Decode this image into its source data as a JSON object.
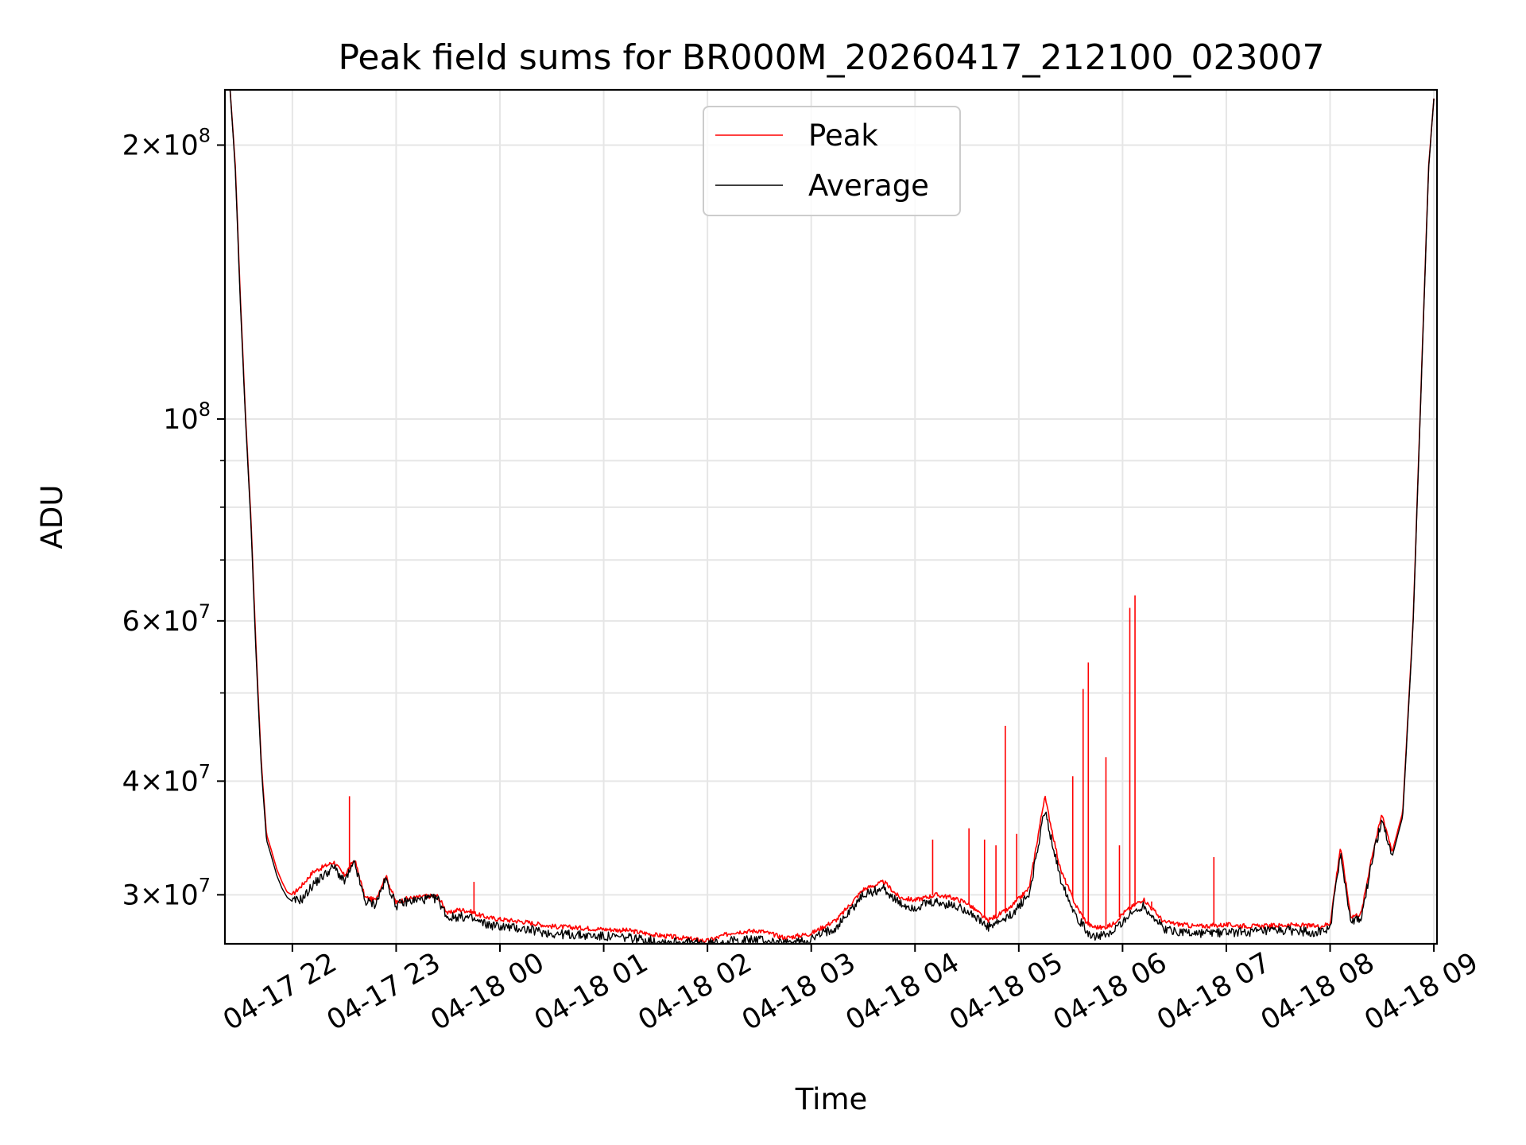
{
  "chart_data": {
    "type": "line",
    "title": "Peak field sums for BR000M_20260417_212100_023007",
    "xlabel": "Time",
    "ylabel": "ADU",
    "yscale": "log",
    "ylim": [
      26500000,
      230000000
    ],
    "xlim_hours": [
      -0.65,
      11.03
    ],
    "grid": true,
    "legend_position": "top-center",
    "x_ticks": [
      {
        "label": "04-17 22",
        "hour": 0
      },
      {
        "label": "04-17 23",
        "hour": 1
      },
      {
        "label": "04-18 00",
        "hour": 2
      },
      {
        "label": "04-18 01",
        "hour": 3
      },
      {
        "label": "04-18 02",
        "hour": 4
      },
      {
        "label": "04-18 03",
        "hour": 5
      },
      {
        "label": "04-18 04",
        "hour": 6
      },
      {
        "label": "04-18 05",
        "hour": 7
      },
      {
        "label": "04-18 06",
        "hour": 8
      },
      {
        "label": "04-18 07",
        "hour": 9
      },
      {
        "label": "04-18 08",
        "hour": 10
      },
      {
        "label": "04-18 09",
        "hour": 11
      }
    ],
    "y_ticks": [
      {
        "value": 30000000,
        "mantissa": "3",
        "exponent": "7"
      },
      {
        "value": 40000000,
        "mantissa": "4",
        "exponent": "7"
      },
      {
        "value": 60000000,
        "mantissa": "6",
        "exponent": "7"
      },
      {
        "value": 100000000,
        "mantissa": "",
        "exponent": "8"
      },
      {
        "value": 200000000,
        "mantissa": "2",
        "exponent": "8"
      }
    ],
    "series": [
      {
        "name": "Peak",
        "color": "#ff0000",
        "x_hours": [
          -0.6,
          -0.55,
          -0.5,
          -0.45,
          -0.4,
          -0.35,
          -0.3,
          -0.25,
          -0.2,
          -0.15,
          -0.1,
          -0.05,
          0.0,
          0.1,
          0.2,
          0.3,
          0.4,
          0.5,
          0.6,
          0.7,
          0.8,
          0.9,
          1.0,
          1.1,
          1.2,
          1.3,
          1.4,
          1.5,
          1.6,
          1.7,
          1.8,
          1.9,
          2.0,
          2.25,
          2.5,
          2.75,
          3.0,
          3.25,
          3.5,
          3.75,
          4.0,
          4.25,
          4.5,
          4.75,
          5.0,
          5.25,
          5.5,
          5.7,
          5.85,
          6.0,
          6.1,
          6.2,
          6.35,
          6.5,
          6.7,
          6.9,
          7.1,
          7.25,
          7.4,
          7.55,
          7.65,
          7.7,
          7.8,
          7.9,
          8.0,
          8.2,
          8.4,
          8.5,
          8.6,
          8.7,
          9.0,
          9.3,
          9.6,
          9.9,
          10.0,
          10.1,
          10.2,
          10.3,
          10.4,
          10.5,
          10.6,
          10.7,
          10.8,
          10.9,
          10.95,
          11.0
        ],
        "y": [
          230000000,
          190000000,
          135000000,
          100000000,
          78000000,
          56000000,
          42000000,
          35000000,
          33500000,
          32000000,
          31000000,
          30200000,
          30000000,
          30800000,
          31800000,
          32200000,
          32600000,
          31500000,
          32800000,
          29800000,
          29600000,
          31500000,
          29400000,
          29700000,
          29800000,
          29900000,
          29900000,
          28600000,
          28900000,
          28800000,
          28500000,
          28300000,
          28200000,
          28000000,
          27700000,
          27600000,
          27500000,
          27400000,
          27100000,
          26900000,
          26700000,
          27300000,
          27400000,
          26900000,
          27200000,
          28200000,
          30400000,
          31000000,
          29800000,
          29600000,
          29800000,
          30000000,
          29800000,
          29400000,
          28100000,
          28900000,
          30500000,
          38500000,
          32000000,
          29200000,
          28000000,
          27700000,
          27600000,
          27800000,
          28600000,
          29700000,
          28000000,
          27900000,
          27800000,
          27700000,
          27800000,
          27700000,
          27800000,
          27700000,
          27900000,
          33900000,
          28400000,
          28600000,
          33000000,
          36800000,
          33500000,
          37000000,
          60000000,
          130000000,
          190000000,
          225000000
        ],
        "spikes": [
          {
            "x_hour": 0.55,
            "y": 38500000
          },
          {
            "x_hour": 1.75,
            "y": 31000000
          },
          {
            "x_hour": 6.17,
            "y": 34500000
          },
          {
            "x_hour": 6.52,
            "y": 35500000
          },
          {
            "x_hour": 6.67,
            "y": 34500000
          },
          {
            "x_hour": 6.78,
            "y": 34000000
          },
          {
            "x_hour": 6.87,
            "y": 46000000
          },
          {
            "x_hour": 6.98,
            "y": 35000000
          },
          {
            "x_hour": 7.52,
            "y": 40500000
          },
          {
            "x_hour": 7.62,
            "y": 50500000
          },
          {
            "x_hour": 7.67,
            "y": 54000000
          },
          {
            "x_hour": 7.84,
            "y": 42500000
          },
          {
            "x_hour": 7.97,
            "y": 34000000
          },
          {
            "x_hour": 8.07,
            "y": 62000000
          },
          {
            "x_hour": 8.12,
            "y": 64000000
          },
          {
            "x_hour": 8.28,
            "y": 29500000
          },
          {
            "x_hour": 8.88,
            "y": 33000000
          }
        ]
      },
      {
        "name": "Average",
        "color": "#000000",
        "x_hours": [
          -0.6,
          -0.55,
          -0.5,
          -0.45,
          -0.4,
          -0.35,
          -0.3,
          -0.25,
          -0.2,
          -0.15,
          -0.1,
          -0.05,
          0.0,
          0.1,
          0.2,
          0.3,
          0.4,
          0.5,
          0.6,
          0.7,
          0.8,
          0.9,
          1.0,
          1.1,
          1.2,
          1.3,
          1.4,
          1.5,
          1.6,
          1.7,
          1.8,
          1.9,
          2.0,
          2.25,
          2.5,
          2.75,
          3.0,
          3.25,
          3.5,
          3.75,
          4.0,
          4.25,
          4.5,
          4.75,
          5.0,
          5.25,
          5.5,
          5.7,
          5.85,
          6.0,
          6.1,
          6.2,
          6.35,
          6.5,
          6.7,
          6.9,
          7.1,
          7.25,
          7.4,
          7.55,
          7.65,
          7.7,
          7.8,
          7.9,
          8.0,
          8.2,
          8.4,
          8.5,
          8.6,
          8.7,
          9.0,
          9.3,
          9.6,
          9.9,
          10.0,
          10.1,
          10.2,
          10.3,
          10.4,
          10.5,
          10.6,
          10.7,
          10.8,
          10.9,
          10.95,
          11.0
        ],
        "y": [
          230000000,
          188000000,
          133000000,
          99000000,
          77000000,
          55000000,
          41500000,
          34500000,
          33000000,
          31500000,
          30500000,
          29800000,
          29500000,
          29700000,
          30800000,
          31500000,
          32200000,
          31000000,
          32500000,
          29500000,
          29300000,
          31200000,
          29200000,
          29500000,
          29600000,
          29700000,
          29700000,
          28300000,
          28400000,
          28300000,
          28000000,
          27800000,
          27700000,
          27500000,
          27200000,
          27100000,
          27000000,
          26900000,
          26700000,
          26600000,
          26500000,
          26700000,
          26800000,
          26500000,
          26800000,
          27700000,
          30000000,
          30500000,
          29300000,
          29000000,
          29300000,
          29400000,
          29200000,
          28900000,
          27600000,
          28300000,
          30000000,
          37200000,
          31300000,
          28500000,
          27400000,
          27100000,
          27000000,
          27200000,
          28100000,
          29200000,
          27500000,
          27400000,
          27300000,
          27200000,
          27300000,
          27300000,
          27400000,
          27300000,
          27500000,
          33400000,
          28000000,
          28200000,
          32600000,
          36300000,
          33100000,
          36600000,
          59500000,
          129000000,
          189000000,
          225000000
        ]
      }
    ]
  }
}
